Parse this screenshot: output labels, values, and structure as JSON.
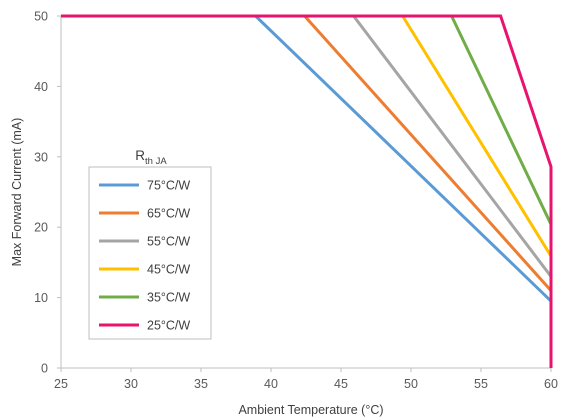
{
  "chart_data": {
    "type": "line",
    "title": "",
    "xlabel": "Ambient Temperature (°C)",
    "ylabel": "Max Forward Current (mA)",
    "xlim": [
      25,
      60
    ],
    "ylim": [
      0,
      50
    ],
    "x_ticks": [
      "25",
      "30",
      "35",
      "40",
      "45",
      "50",
      "55",
      "60"
    ],
    "y_ticks": [
      "0",
      "10",
      "20",
      "30",
      "40",
      "50"
    ],
    "grid": false,
    "legend": {
      "placement": "left-center",
      "title_main": "R",
      "title_sub": "th JA"
    },
    "series": [
      {
        "name": "75°C/W",
        "color": "#5B9BD5",
        "x": [
          25,
          38.9,
          60,
          60
        ],
        "y": [
          50,
          50,
          9.5,
          0
        ]
      },
      {
        "name": "65°C/W",
        "color": "#ED7D31",
        "x": [
          25,
          42.4,
          60,
          60
        ],
        "y": [
          50,
          50,
          11.0,
          0
        ]
      },
      {
        "name": "55°C/W",
        "color": "#A5A5A5",
        "x": [
          25,
          45.9,
          60,
          60
        ],
        "y": [
          50,
          50,
          13.0,
          0
        ]
      },
      {
        "name": "45°C/W",
        "color": "#FFC000",
        "x": [
          25,
          49.4,
          60,
          60
        ],
        "y": [
          50,
          50,
          15.9,
          0
        ]
      },
      {
        "name": "35°C/W",
        "color": "#70AD47",
        "x": [
          25,
          52.9,
          60,
          60
        ],
        "y": [
          50,
          50,
          20.4,
          0
        ]
      },
      {
        "name": "25°C/W",
        "color": "#E8136E",
        "x": [
          25,
          56.4,
          60,
          60
        ],
        "y": [
          50,
          50,
          28.6,
          0
        ]
      }
    ]
  }
}
